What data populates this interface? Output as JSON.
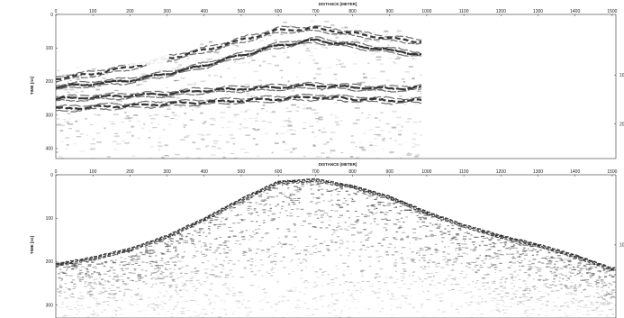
{
  "chart_data": [
    {
      "type": "heatmap",
      "title": "",
      "xlabel": "DISTANCE [METER]",
      "ylabel": "TIME [ns]",
      "x_ticks": [
        0,
        100,
        200,
        300,
        400,
        500,
        600,
        700,
        800,
        900,
        1000,
        1100,
        1200,
        1300,
        1400,
        1500
      ],
      "y_ticks": [
        0,
        100,
        200,
        300,
        400
      ],
      "right_ticks": [
        "10",
        "20"
      ],
      "xlim": [
        0,
        1510
      ],
      "ylim": [
        0,
        430
      ],
      "data_extent_x": [
        0,
        1000
      ],
      "colormap": "grayscale",
      "reflectors": [
        {
          "x": [
            0,
            100,
            200,
            300,
            400,
            500,
            600,
            700,
            800,
            900,
            1000
          ],
          "y": [
            185,
            170,
            150,
            125,
            100,
            70,
            40,
            35,
            50,
            65,
            75
          ]
        },
        {
          "x": [
            0,
            100,
            200,
            300,
            400,
            500,
            600,
            700,
            800,
            900,
            1000
          ],
          "y": [
            210,
            200,
            190,
            170,
            145,
            115,
            85,
            70,
            85,
            100,
            115
          ]
        },
        {
          "x": [
            0,
            100,
            200,
            300,
            400,
            500,
            600,
            700,
            800,
            900,
            1000
          ],
          "y": [
            245,
            240,
            235,
            230,
            220,
            215,
            210,
            205,
            210,
            215,
            210
          ]
        },
        {
          "x": [
            0,
            100,
            200,
            300,
            400,
            500,
            600,
            700,
            800,
            900,
            1000
          ],
          "y": [
            275,
            270,
            265,
            260,
            255,
            250,
            245,
            240,
            245,
            250,
            250
          ]
        }
      ]
    },
    {
      "type": "heatmap",
      "title": "",
      "xlabel": "DISTANCE [METER]",
      "ylabel": "TIME [ns]",
      "x_ticks": [
        0,
        100,
        200,
        300,
        400,
        500,
        600,
        700,
        800,
        900,
        1000,
        1100,
        1200,
        1300,
        1400,
        1500
      ],
      "y_ticks": [
        0,
        100,
        200,
        300
      ],
      "right_ticks": [
        "10"
      ],
      "xlim": [
        0,
        1510
      ],
      "ylim": [
        0,
        330
      ],
      "data_extent_x": [
        0,
        1510
      ],
      "colormap": "grayscale",
      "surface": {
        "x": [
          0,
          100,
          200,
          300,
          400,
          500,
          600,
          700,
          800,
          900,
          1000,
          1100,
          1200,
          1300,
          1400,
          1500
        ],
        "y": [
          205,
          190,
          170,
          140,
          100,
          55,
          15,
          10,
          25,
          50,
          85,
          115,
          140,
          160,
          185,
          215
        ]
      }
    }
  ]
}
